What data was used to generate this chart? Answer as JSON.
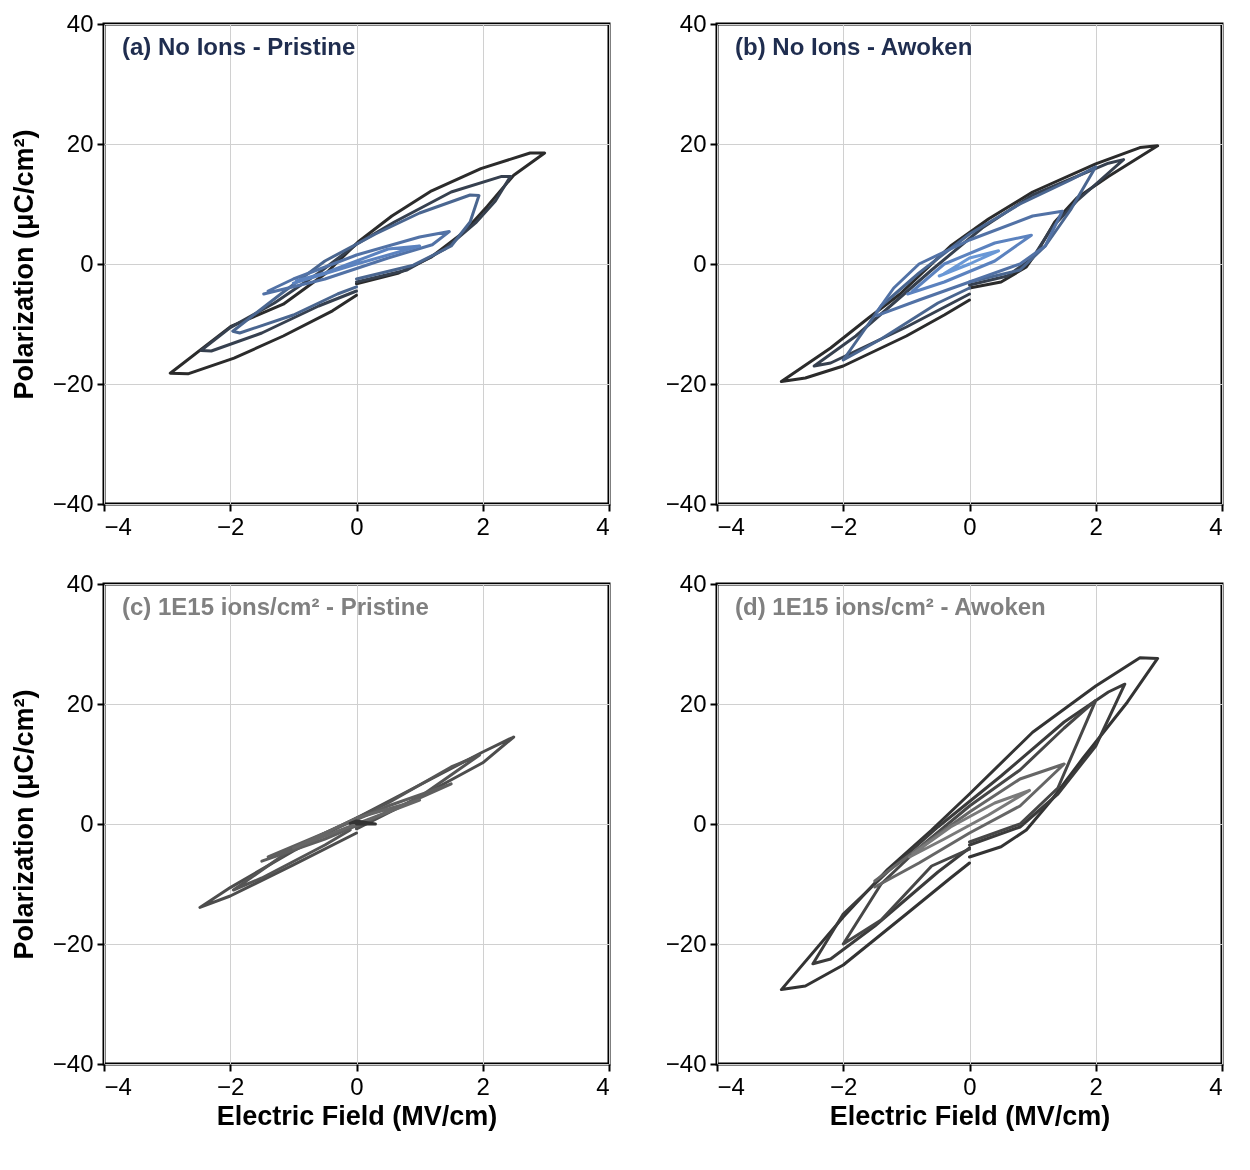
{
  "chart_data": [
    {
      "type": "line",
      "title": "(a) No Ions - Pristine",
      "ylabel": "Polarization (μC/cm²)",
      "xlim": [
        -4,
        4
      ],
      "ylim": [
        -40,
        40
      ],
      "xticks": [
        -4,
        -2,
        0,
        2,
        4
      ],
      "yticks": [
        -40,
        -20,
        0,
        20,
        40
      ],
      "grid": true,
      "series": [
        {
          "color": "#2b2b2b",
          "x": [
            0,
            0.67,
            1.19,
            1.71,
            2.07,
            2.49,
            2.98,
            2.75,
            1.97,
            1.19,
            0.56,
            0.04,
            -0.48,
            -1.16,
            -1.99,
            -2.95,
            -2.67,
            -1.94,
            -1.16,
            -0.38,
            0
          ],
          "values": [
            -3.3,
            -1.5,
            1.2,
            5.4,
            9.6,
            14.8,
            18.5,
            18.5,
            15.9,
            12.2,
            8,
            3.8,
            -1.5,
            -6.7,
            -10.4,
            -18.2,
            -18.3,
            -15.7,
            -12,
            -7.8,
            -5.2
          ]
        },
        {
          "color": "#36404f",
          "x": [
            0,
            0.8,
            1.4,
            1.9,
            2.2,
            2.44,
            2.3,
            1.5,
            0.6,
            0,
            -0.6,
            -1.3,
            -2,
            -2.46,
            -2.3,
            -1.5,
            -0.6,
            0
          ],
          "values": [
            -3,
            -1,
            2.5,
            7,
            10.5,
            14.6,
            14.6,
            12,
            7,
            3.3,
            -1.5,
            -6.5,
            -10.6,
            -14.4,
            -14.5,
            -11.5,
            -7,
            -4.5
          ]
        },
        {
          "color": "#4a6690",
          "x": [
            0,
            0.9,
            1.5,
            1.8,
            1.94,
            1.8,
            1,
            0.3,
            -0.5,
            -1.2,
            -1.96,
            -1.85,
            -1,
            -0.3,
            0
          ],
          "values": [
            -2.5,
            -0.2,
            3,
            7,
            11.4,
            11.5,
            8.5,
            5,
            0.5,
            -5,
            -11.2,
            -11.5,
            -8.5,
            -5,
            -3.8
          ]
        },
        {
          "color": "#5272a6",
          "x": [
            -1.47,
            -0.5,
            0.5,
            1.2,
            1.47,
            1,
            0,
            -1,
            -1.4
          ],
          "values": [
            -5,
            -2.5,
            1,
            3.2,
            5.4,
            4.5,
            1.5,
            -2.5,
            -4.5
          ]
        },
        {
          "color": "#5b82bf",
          "x": [
            -1,
            0,
            1,
            0.5,
            -0.5,
            -0.95
          ],
          "values": [
            -3.2,
            0,
            3,
            2.5,
            -1.5,
            -2.8
          ]
        }
      ]
    },
    {
      "type": "line",
      "title": "(b) No Ions - Awoken",
      "xlim": [
        -4,
        4
      ],
      "ylim": [
        -40,
        40
      ],
      "xticks": [
        -4,
        -2,
        0,
        2,
        4
      ],
      "yticks": [
        -40,
        -20,
        0,
        20,
        40
      ],
      "grid": true,
      "series": [
        {
          "color": "#2b2b2b",
          "x": [
            0,
            0.5,
            0.9,
            1.1,
            1.35,
            1.7,
            2.2,
            2.98,
            2.7,
            2,
            1,
            0.3,
            -0.3,
            -0.8,
            -1.1,
            -1.6,
            -2.2,
            -2.98,
            -2.6,
            -2,
            -1,
            -0.4,
            0
          ],
          "values": [
            -4,
            -3,
            -0.5,
            2.5,
            7,
            11,
            14.6,
            19.7,
            19.4,
            16.7,
            12,
            7.5,
            3,
            -2,
            -5,
            -9,
            -14,
            -19.6,
            -19,
            -17,
            -12,
            -8.5,
            -6
          ]
        },
        {
          "color": "#36404f",
          "x": [
            0,
            0.6,
            1,
            1.3,
            1.7,
            2.44,
            2.2,
            1,
            0.2,
            -0.6,
            -1.2,
            -1.8,
            -2.46,
            -2.2,
            -1,
            0
          ],
          "values": [
            -3.5,
            -2,
            1,
            6,
            10.5,
            17.4,
            16.8,
            11.5,
            6,
            -1,
            -6.5,
            -12,
            -17,
            -16.5,
            -10.5,
            -5
          ]
        },
        {
          "color": "#4a6690",
          "x": [
            0,
            0.8,
            1.2,
            1.6,
            2,
            1.6,
            0.8,
            0,
            -0.8,
            -1.4,
            -2,
            -1.4,
            -0.5,
            0
          ],
          "values": [
            -3,
            -1,
            3,
            9,
            16.2,
            14,
            10,
            5,
            -1.5,
            -7,
            -16,
            -12.5,
            -6.5,
            -4
          ]
        },
        {
          "color": "#5272a6",
          "x": [
            -1.47,
            -0.8,
            0,
            0.8,
            1.2,
            1.47,
            1,
            0,
            -0.8,
            -1.2,
            -1.47
          ],
          "values": [
            -8.6,
            -6,
            -3,
            0,
            3,
            8.8,
            8,
            4,
            0,
            -4,
            -8
          ]
        },
        {
          "color": "#5b82bf",
          "x": [
            -0.98,
            -0.4,
            0.4,
            0.98,
            0.4,
            -0.4,
            -0.9
          ],
          "values": [
            -5,
            -3,
            0.5,
            4.8,
            3.5,
            0,
            -4.5
          ]
        },
        {
          "color": "#6a98d6",
          "x": [
            -0.48,
            0,
            0.46,
            0,
            -0.4
          ],
          "values": [
            -2,
            0,
            2.2,
            1,
            -1.6
          ]
        }
      ]
    },
    {
      "type": "line",
      "title": "(c) 1E15 ions/cm² - Pristine",
      "ylabel": "Polarization (μC/cm²)",
      "xlabel": "Electric Field (MV/cm)",
      "xlim": [
        -4,
        4
      ],
      "ylim": [
        -40,
        40
      ],
      "xticks": [
        -4,
        -2,
        0,
        2,
        4
      ],
      "yticks": [
        -40,
        -20,
        0,
        20,
        40
      ],
      "grid": true,
      "series": [
        {
          "color": "#4d4d4d",
          "x": [
            0,
            1,
            2,
            2.49,
            2,
            1,
            0,
            -1,
            -2,
            -2.48,
            -2,
            -1,
            0
          ],
          "values": [
            -0.8,
            4.5,
            10.2,
            14.5,
            12,
            6.5,
            1,
            -4.5,
            -10.6,
            -13.9,
            -12,
            -6.8,
            -1.5
          ]
        },
        {
          "color": "#555555",
          "x": [
            0,
            1,
            1.95,
            1.5,
            0.5,
            -1,
            -1.95,
            -1.5,
            -0.5,
            -0.1
          ],
          "values": [
            -0.5,
            4.5,
            11.5,
            9.5,
            3.5,
            -4,
            -11,
            -9,
            -3.5,
            -1
          ]
        },
        {
          "color": "#5e5e5e",
          "x": [
            -1.5,
            -0.5,
            0.5,
            1.5,
            0.5,
            -0.5,
            -1.4
          ],
          "values": [
            -6.2,
            -2.5,
            2,
            6.7,
            3,
            -1.5,
            -5.5
          ]
        },
        {
          "color": "#666666",
          "x": [
            -1,
            0,
            1,
            0,
            -0.9
          ],
          "values": [
            -4,
            0,
            4,
            1,
            -3.5
          ]
        },
        {
          "color": "#333333",
          "x": [
            0,
            0.3,
            0,
            -0.1
          ],
          "values": [
            0,
            0,
            0.5,
            0.1
          ]
        }
      ]
    },
    {
      "type": "line",
      "title": "(d) 1E15 ions/cm² - Awoken",
      "xlabel": "Electric Field (MV/cm)",
      "xlim": [
        -4,
        4
      ],
      "ylim": [
        -40,
        40
      ],
      "xticks": [
        -4,
        -2,
        0,
        2,
        4
      ],
      "yticks": [
        -40,
        -20,
        0,
        20,
        40
      ],
      "grid": true,
      "series": [
        {
          "color": "#333333",
          "x": [
            0,
            0.5,
            0.9,
            1.3,
            1.8,
            2.5,
            2.98,
            2.7,
            2,
            1,
            0,
            -0.6,
            -1.3,
            -2,
            -2.98,
            -2.6,
            -2,
            -1,
            -0.3,
            0
          ],
          "values": [
            -5.5,
            -3.8,
            -1,
            4,
            11,
            20.3,
            27.6,
            27.7,
            23,
            15.3,
            5,
            -1,
            -7.6,
            -15.5,
            -27.6,
            -27,
            -23.5,
            -15,
            -9,
            -6.5
          ]
        },
        {
          "color": "#3b3b3b",
          "x": [
            0,
            0.8,
            1.4,
            2,
            2.46,
            2.2,
            1.5,
            0.5,
            -0.5,
            -1.3,
            -2,
            -2.48,
            -2.2,
            -1.5,
            -0.5,
            0
          ],
          "values": [
            -3.5,
            -0.5,
            5,
            13,
            23.3,
            22,
            17,
            8,
            -0.5,
            -8,
            -15,
            -23.3,
            -22.5,
            -17,
            -8,
            -4
          ]
        },
        {
          "color": "#474747",
          "x": [
            0,
            0.8,
            1.4,
            2,
            1.5,
            0.8,
            0,
            -0.8,
            -1.4,
            -2,
            -1.4,
            -0.6,
            0
          ],
          "values": [
            -3,
            0,
            6,
            20.6,
            16,
            9,
            3,
            -4,
            -10,
            -20,
            -16,
            -7,
            -4.2
          ]
        },
        {
          "color": "#666666",
          "x": [
            -1.5,
            -0.8,
            0,
            0.8,
            1.5,
            0.8,
            0,
            -0.8,
            -1.5
          ],
          "values": [
            -10.5,
            -6.5,
            -1.5,
            3,
            10,
            7.5,
            2,
            -4,
            -9.5
          ]
        },
        {
          "color": "#7a7a7a",
          "x": [
            -0.95,
            -0.4,
            0.3,
            0.95,
            0.4,
            -0.3,
            -0.9
          ],
          "values": [
            -5.5,
            -2.5,
            1.5,
            5.6,
            3.5,
            -0.5,
            -5
          ]
        }
      ]
    }
  ]
}
